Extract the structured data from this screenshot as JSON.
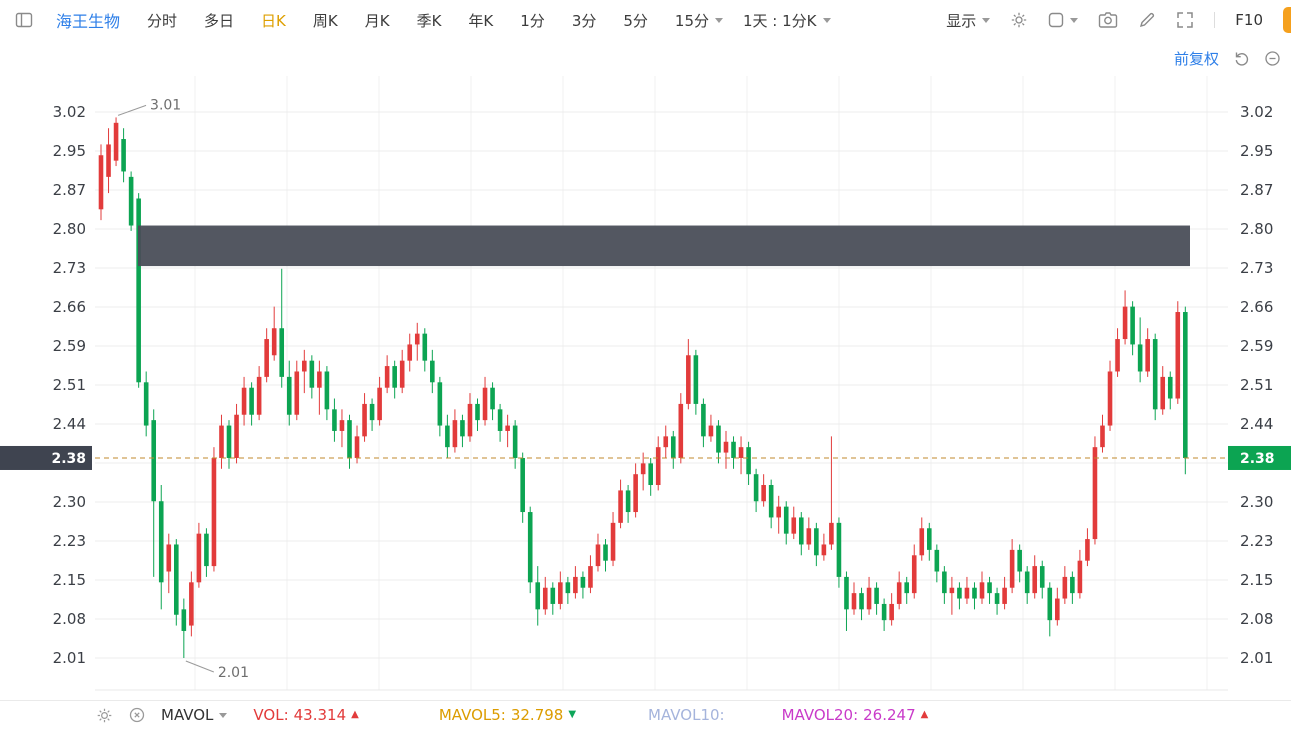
{
  "colors": {
    "accent": "#dd9f00",
    "link": "#2e7fe8",
    "up": "#e23b3b",
    "down": "#0ca452"
  },
  "toolbar": {
    "stock_name": "海王生物",
    "active_color": "#dd9f00",
    "tabs": [
      {
        "label": "分时",
        "active": false
      },
      {
        "label": "多日",
        "active": false
      },
      {
        "label": "日K",
        "active": true
      },
      {
        "label": "周K",
        "active": false
      },
      {
        "label": "月K",
        "active": false
      },
      {
        "label": "季K",
        "active": false
      },
      {
        "label": "年K",
        "active": false
      },
      {
        "label": "1分",
        "active": false
      },
      {
        "label": "3分",
        "active": false
      },
      {
        "label": "5分",
        "active": false
      },
      {
        "label": "15分",
        "active": false
      }
    ],
    "interval_selector": "1天 : 1分K",
    "display_label": "显示",
    "f10_label": "F10"
  },
  "subheader": {
    "adjust_label": "前复权"
  },
  "indicator_bar": {
    "selector_label": "MAVOL",
    "items": [
      {
        "label": "VOL:",
        "value": "43.314",
        "color": "#e23b3b",
        "arrow": "▲",
        "arrow_color": "#e23b3b"
      },
      {
        "label": "MAVOL5:",
        "value": "32.798",
        "color": "#dc9c00",
        "arrow": "▼",
        "arrow_color": "#0ea65a"
      },
      {
        "label": "MAVOL10:",
        "value": "",
        "color": "#a5b4dc",
        "arrow": "",
        "arrow_color": ""
      },
      {
        "label": "MAVOL20:",
        "value": "26.247",
        "color": "#c93bc9",
        "arrow": "▲",
        "arrow_color": "#e23b3b"
      }
    ]
  },
  "chart_data": {
    "type": "candlestick",
    "symbol": "海王生物",
    "period": "日K",
    "adjustment": "前复权",
    "price_range": [
      2.01,
      3.02
    ],
    "y_tick_labels": [
      "3.02",
      "2.95",
      "2.87",
      "2.80",
      "2.73",
      "2.66",
      "2.59",
      "2.51",
      "2.44",
      "",
      "2.30",
      "2.23",
      "2.15",
      "2.08",
      "2.01"
    ],
    "current_price": "2.38",
    "current_price_value": 2.38,
    "high_label": "3.01",
    "high_value": 3.01,
    "high_index": 2,
    "low_label": "2.01",
    "low_value": 2.01,
    "low_index": 11,
    "up_color": "#e23b3b",
    "down_color": "#0ca452",
    "price_line_color": "#c08a2d",
    "price_label_left_bg": "#3f4450",
    "band": {
      "from_price": 2.81,
      "to_price": 2.735,
      "color": "#4a4e58"
    },
    "candles": [
      [
        2.84,
        2.96,
        2.82,
        2.94
      ],
      [
        2.9,
        2.99,
        2.87,
        2.96
      ],
      [
        2.93,
        3.01,
        2.92,
        3.0
      ],
      [
        2.97,
        2.99,
        2.89,
        2.91
      ],
      [
        2.9,
        2.91,
        2.8,
        2.81
      ],
      [
        2.86,
        2.87,
        2.51,
        2.52
      ],
      [
        2.52,
        2.54,
        2.42,
        2.44
      ],
      [
        2.45,
        2.47,
        2.16,
        2.3
      ],
      [
        2.3,
        2.33,
        2.1,
        2.15
      ],
      [
        2.17,
        2.24,
        2.13,
        2.22
      ],
      [
        2.22,
        2.23,
        2.07,
        2.09
      ],
      [
        2.1,
        2.12,
        2.01,
        2.06
      ],
      [
        2.07,
        2.17,
        2.05,
        2.15
      ],
      [
        2.15,
        2.26,
        2.14,
        2.24
      ],
      [
        2.24,
        2.25,
        2.16,
        2.18
      ],
      [
        2.18,
        2.4,
        2.17,
        2.38
      ],
      [
        2.38,
        2.46,
        2.36,
        2.44
      ],
      [
        2.44,
        2.45,
        2.36,
        2.38
      ],
      [
        2.38,
        2.48,
        2.37,
        2.46
      ],
      [
        2.46,
        2.53,
        2.44,
        2.51
      ],
      [
        2.51,
        2.52,
        2.44,
        2.46
      ],
      [
        2.46,
        2.55,
        2.45,
        2.53
      ],
      [
        2.53,
        2.62,
        2.52,
        2.6
      ],
      [
        2.57,
        2.66,
        2.56,
        2.62
      ],
      [
        2.62,
        2.73,
        2.51,
        2.53
      ],
      [
        2.53,
        2.56,
        2.44,
        2.46
      ],
      [
        2.46,
        2.56,
        2.45,
        2.54
      ],
      [
        2.54,
        2.58,
        2.5,
        2.56
      ],
      [
        2.56,
        2.57,
        2.49,
        2.51
      ],
      [
        2.51,
        2.56,
        2.46,
        2.54
      ],
      [
        2.54,
        2.55,
        2.45,
        2.47
      ],
      [
        2.47,
        2.49,
        2.41,
        2.43
      ],
      [
        2.43,
        2.47,
        2.4,
        2.45
      ],
      [
        2.45,
        2.46,
        2.36,
        2.38
      ],
      [
        2.38,
        2.44,
        2.37,
        2.42
      ],
      [
        2.42,
        2.5,
        2.41,
        2.48
      ],
      [
        2.48,
        2.49,
        2.43,
        2.45
      ],
      [
        2.45,
        2.53,
        2.44,
        2.51
      ],
      [
        2.51,
        2.57,
        2.5,
        2.55
      ],
      [
        2.55,
        2.56,
        2.49,
        2.51
      ],
      [
        2.51,
        2.58,
        2.5,
        2.56
      ],
      [
        2.56,
        2.61,
        2.54,
        2.59
      ],
      [
        2.59,
        2.63,
        2.56,
        2.61
      ],
      [
        2.61,
        2.62,
        2.54,
        2.56
      ],
      [
        2.56,
        2.58,
        2.5,
        2.52
      ],
      [
        2.52,
        2.53,
        2.42,
        2.44
      ],
      [
        2.44,
        2.46,
        2.38,
        2.4
      ],
      [
        2.4,
        2.47,
        2.39,
        2.45
      ],
      [
        2.45,
        2.46,
        2.4,
        2.42
      ],
      [
        2.42,
        2.5,
        2.41,
        2.48
      ],
      [
        2.48,
        2.49,
        2.43,
        2.45
      ],
      [
        2.45,
        2.53,
        2.44,
        2.51
      ],
      [
        2.51,
        2.52,
        2.45,
        2.47
      ],
      [
        2.47,
        2.48,
        2.41,
        2.43
      ],
      [
        2.43,
        2.46,
        2.4,
        2.44
      ],
      [
        2.44,
        2.45,
        2.36,
        2.38
      ],
      [
        2.38,
        2.39,
        2.26,
        2.28
      ],
      [
        2.28,
        2.29,
        2.13,
        2.15
      ],
      [
        2.15,
        2.18,
        2.07,
        2.1
      ],
      [
        2.1,
        2.16,
        2.09,
        2.14
      ],
      [
        2.14,
        2.15,
        2.09,
        2.11
      ],
      [
        2.11,
        2.17,
        2.1,
        2.15
      ],
      [
        2.15,
        2.16,
        2.11,
        2.13
      ],
      [
        2.13,
        2.18,
        2.12,
        2.16
      ],
      [
        2.16,
        2.17,
        2.12,
        2.14
      ],
      [
        2.14,
        2.2,
        2.13,
        2.18
      ],
      [
        2.18,
        2.24,
        2.17,
        2.22
      ],
      [
        2.22,
        2.23,
        2.17,
        2.19
      ],
      [
        2.19,
        2.28,
        2.18,
        2.26
      ],
      [
        2.26,
        2.34,
        2.25,
        2.32
      ],
      [
        2.32,
        2.33,
        2.26,
        2.28
      ],
      [
        2.28,
        2.37,
        2.27,
        2.35
      ],
      [
        2.35,
        2.39,
        2.32,
        2.37
      ],
      [
        2.37,
        2.38,
        2.31,
        2.33
      ],
      [
        2.33,
        2.42,
        2.32,
        2.4
      ],
      [
        2.4,
        2.44,
        2.38,
        2.42
      ],
      [
        2.42,
        2.43,
        2.36,
        2.38
      ],
      [
        2.38,
        2.5,
        2.37,
        2.48
      ],
      [
        2.48,
        2.6,
        2.47,
        2.57
      ],
      [
        2.57,
        2.58,
        2.46,
        2.48
      ],
      [
        2.48,
        2.49,
        2.4,
        2.42
      ],
      [
        2.42,
        2.46,
        2.41,
        2.44
      ],
      [
        2.44,
        2.45,
        2.37,
        2.39
      ],
      [
        2.39,
        2.43,
        2.36,
        2.41
      ],
      [
        2.41,
        2.42,
        2.36,
        2.38
      ],
      [
        2.38,
        2.42,
        2.35,
        2.4
      ],
      [
        2.4,
        2.41,
        2.33,
        2.35
      ],
      [
        2.35,
        2.36,
        2.28,
        2.3
      ],
      [
        2.3,
        2.35,
        2.29,
        2.33
      ],
      [
        2.33,
        2.34,
        2.25,
        2.27
      ],
      [
        2.27,
        2.31,
        2.24,
        2.29
      ],
      [
        2.29,
        2.3,
        2.22,
        2.24
      ],
      [
        2.24,
        2.29,
        2.23,
        2.27
      ],
      [
        2.27,
        2.28,
        2.2,
        2.22
      ],
      [
        2.22,
        2.27,
        2.21,
        2.25
      ],
      [
        2.25,
        2.26,
        2.18,
        2.2
      ],
      [
        2.2,
        2.24,
        2.19,
        2.22
      ],
      [
        2.22,
        2.42,
        2.21,
        2.26
      ],
      [
        2.26,
        2.27,
        2.14,
        2.16
      ],
      [
        2.16,
        2.17,
        2.06,
        2.1
      ],
      [
        2.1,
        2.15,
        2.09,
        2.13
      ],
      [
        2.13,
        2.14,
        2.08,
        2.1
      ],
      [
        2.1,
        2.16,
        2.09,
        2.14
      ],
      [
        2.14,
        2.15,
        2.09,
        2.11
      ],
      [
        2.11,
        2.12,
        2.06,
        2.08
      ],
      [
        2.08,
        2.13,
        2.07,
        2.11
      ],
      [
        2.11,
        2.17,
        2.1,
        2.15
      ],
      [
        2.15,
        2.16,
        2.11,
        2.13
      ],
      [
        2.13,
        2.22,
        2.12,
        2.2
      ],
      [
        2.2,
        2.27,
        2.19,
        2.25
      ],
      [
        2.25,
        2.26,
        2.19,
        2.21
      ],
      [
        2.21,
        2.22,
        2.15,
        2.17
      ],
      [
        2.17,
        2.18,
        2.11,
        2.13
      ],
      [
        2.13,
        2.16,
        2.09,
        2.14
      ],
      [
        2.14,
        2.15,
        2.1,
        2.12
      ],
      [
        2.12,
        2.16,
        2.11,
        2.14
      ],
      [
        2.14,
        2.15,
        2.1,
        2.12
      ],
      [
        2.12,
        2.17,
        2.11,
        2.15
      ],
      [
        2.15,
        2.16,
        2.11,
        2.13
      ],
      [
        2.13,
        2.14,
        2.09,
        2.11
      ],
      [
        2.11,
        2.16,
        2.1,
        2.14
      ],
      [
        2.14,
        2.23,
        2.13,
        2.21
      ],
      [
        2.21,
        2.22,
        2.15,
        2.17
      ],
      [
        2.17,
        2.18,
        2.11,
        2.13
      ],
      [
        2.13,
        2.2,
        2.12,
        2.18
      ],
      [
        2.18,
        2.19,
        2.12,
        2.14
      ],
      [
        2.14,
        2.15,
        2.05,
        2.08
      ],
      [
        2.08,
        2.14,
        2.07,
        2.12
      ],
      [
        2.12,
        2.18,
        2.11,
        2.16
      ],
      [
        2.16,
        2.17,
        2.11,
        2.13
      ],
      [
        2.13,
        2.21,
        2.12,
        2.19
      ],
      [
        2.19,
        2.25,
        2.18,
        2.23
      ],
      [
        2.23,
        2.42,
        2.22,
        2.4
      ],
      [
        2.4,
        2.46,
        2.39,
        2.44
      ],
      [
        2.44,
        2.56,
        2.43,
        2.54
      ],
      [
        2.54,
        2.62,
        2.53,
        2.6
      ],
      [
        2.6,
        2.69,
        2.59,
        2.66
      ],
      [
        2.66,
        2.67,
        2.57,
        2.59
      ],
      [
        2.59,
        2.64,
        2.52,
        2.54
      ],
      [
        2.54,
        2.62,
        2.53,
        2.6
      ],
      [
        2.6,
        2.61,
        2.45,
        2.47
      ],
      [
        2.47,
        2.55,
        2.46,
        2.53
      ],
      [
        2.53,
        2.54,
        2.47,
        2.49
      ],
      [
        2.49,
        2.67,
        2.48,
        2.65
      ],
      [
        2.65,
        2.66,
        2.35,
        2.38
      ]
    ]
  }
}
